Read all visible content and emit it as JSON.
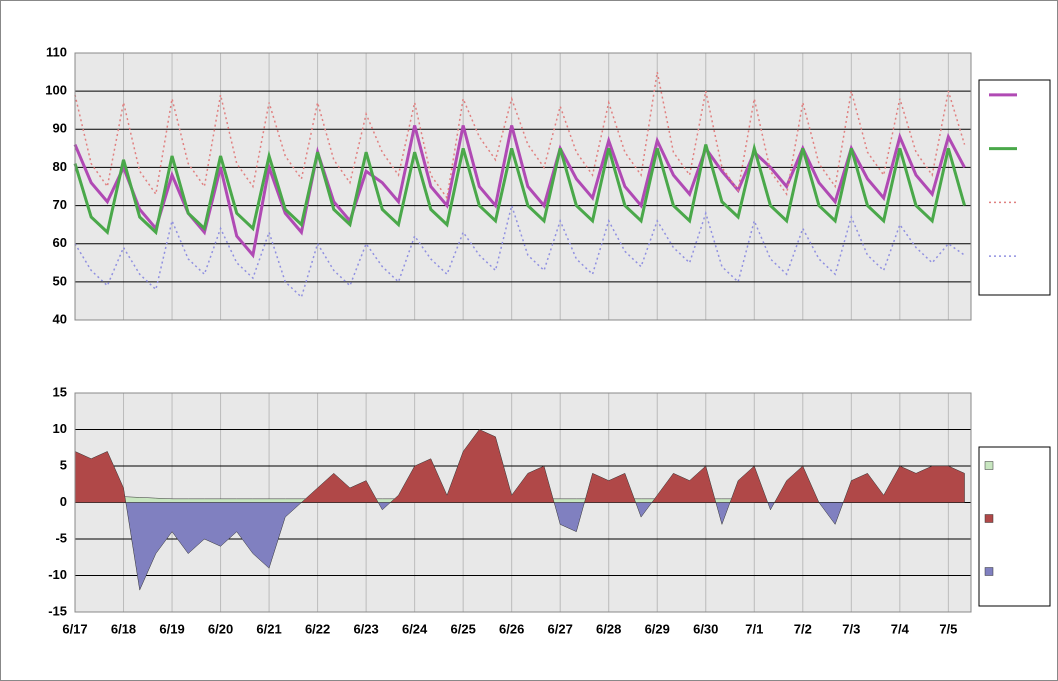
{
  "chart_data": [
    {
      "type": "line",
      "ylim": [
        40,
        110
      ],
      "yticks": [
        40,
        50,
        60,
        70,
        80,
        90,
        100,
        110
      ],
      "grid": true,
      "series": [
        {
          "color": "#b04ab4",
          "style": "solid",
          "width": 3,
          "values": [
            86,
            76,
            71,
            80,
            69,
            64,
            78,
            68,
            63,
            80,
            62,
            57,
            80,
            68,
            63,
            84,
            71,
            66,
            79,
            76,
            71,
            91,
            75,
            70,
            91,
            75,
            70,
            91,
            75,
            70,
            85,
            77,
            72,
            87,
            75,
            70,
            87,
            78,
            73,
            85,
            79,
            74,
            84,
            80,
            75,
            85,
            76,
            71,
            85,
            77,
            72,
            88,
            78,
            73,
            88,
            80
          ]
        },
        {
          "color": "#4aa84a",
          "style": "solid",
          "width": 3,
          "values": [
            81,
            67,
            63,
            82,
            67,
            63,
            83,
            68,
            64,
            83,
            68,
            64,
            83,
            69,
            65,
            84,
            69,
            65,
            84,
            69,
            65,
            84,
            69,
            65,
            85,
            70,
            66,
            85,
            70,
            66,
            85,
            70,
            66,
            85,
            70,
            66,
            85,
            70,
            66,
            86,
            71,
            67,
            85,
            70,
            66,
            85,
            70,
            66,
            85,
            70,
            66,
            85,
            70,
            66,
            85,
            70
          ]
        },
        {
          "color": "#e08080",
          "style": "dotted",
          "width": 1.5,
          "values": [
            99,
            81,
            75,
            97,
            79,
            73,
            98,
            81,
            75,
            99,
            81,
            75,
            97,
            83,
            77,
            97,
            82,
            76,
            94,
            84,
            78,
            97,
            78,
            72,
            98,
            88,
            82,
            98,
            86,
            80,
            96,
            84,
            78,
            97,
            84,
            78,
            105,
            84,
            78,
            100,
            80,
            74,
            98,
            79,
            73,
            97,
            81,
            75,
            100,
            84,
            78,
            98,
            84,
            78,
            100,
            86
          ]
        },
        {
          "color": "#9090e0",
          "style": "dotted",
          "width": 1.5,
          "values": [
            60,
            53,
            49,
            59,
            52,
            48,
            66,
            56,
            52,
            64,
            55,
            51,
            63,
            50,
            46,
            60,
            53,
            49,
            60,
            54,
            50,
            62,
            56,
            52,
            63,
            57,
            53,
            70,
            57,
            53,
            66,
            56,
            52,
            66,
            58,
            54,
            66,
            59,
            55,
            68,
            54,
            50,
            66,
            56,
            52,
            64,
            56,
            52,
            67,
            57,
            53,
            65,
            59,
            55,
            60,
            57
          ]
        }
      ]
    },
    {
      "type": "area",
      "categories": [
        "6/17",
        null,
        null,
        "6/18",
        null,
        null,
        "6/19",
        null,
        null,
        "6/20",
        null,
        null,
        "6/21",
        null,
        null,
        "6/22",
        null,
        null,
        "6/23",
        null,
        null,
        "6/24",
        null,
        null,
        "6/25",
        null,
        null,
        "6/26",
        null,
        null,
        "6/27",
        null,
        null,
        "6/28",
        null,
        null,
        "6/29",
        null,
        null,
        "6/30",
        null,
        null,
        "7/1",
        null,
        null,
        "7/2",
        null,
        null,
        "7/3",
        null,
        null,
        "7/4",
        null,
        null,
        "7/5",
        null
      ],
      "ylim": [
        -15,
        15
      ],
      "yticks": [
        -15,
        -10,
        -5,
        0,
        5,
        10,
        15
      ],
      "grid": true,
      "series": [
        {
          "color": "#c8e6c0",
          "values": [
            1,
            1,
            1,
            0.8,
            0.7,
            0.6,
            0.5,
            0.5,
            0.5,
            0.5,
            0.5,
            0.5,
            0.5,
            0.5,
            0.5,
            0.5,
            0.5,
            0.5,
            0.5,
            0.5,
            0.5,
            0.5,
            0.5,
            0.5,
            0.5,
            0.5,
            0.5,
            0.5,
            0.5,
            0.5,
            0.5,
            0.5,
            0.5,
            0.5,
            0.5,
            0.5,
            0.5,
            0.5,
            0.5,
            0.5,
            0.5,
            0.5,
            0.5,
            null,
            null,
            null,
            null,
            null,
            null,
            null,
            null,
            null,
            null,
            null,
            null,
            null
          ]
        },
        {
          "color": "#b04848",
          "negative_color": "#8080c0",
          "values": [
            7,
            6,
            7,
            2,
            -12,
            -7,
            -4,
            -7,
            -5,
            -6,
            -4,
            -7,
            -9,
            -2,
            0,
            2,
            4,
            2,
            3,
            -1,
            1,
            5,
            6,
            1,
            7,
            10,
            9,
            1,
            4,
            5,
            -3,
            -4,
            4,
            3,
            4,
            -2,
            1,
            4,
            3,
            5,
            -3,
            3,
            5,
            -1,
            3,
            5,
            0,
            -3,
            3,
            4,
            1,
            5,
            4,
            5,
            5,
            4
          ]
        }
      ]
    }
  ]
}
